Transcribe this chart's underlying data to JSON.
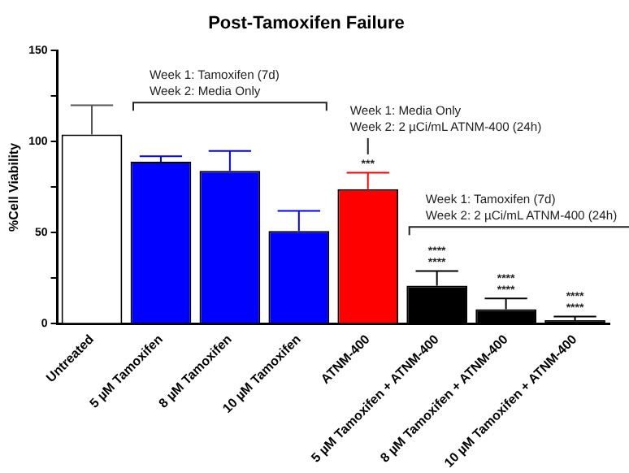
{
  "chart_data": {
    "type": "bar",
    "title": "Post-Tamoxifen Failure",
    "ylabel": "%Cell Viability",
    "categories": [
      "Untreated",
      "5 µM Tamoxifen",
      "8 µM Tamoxifen",
      "10 µM Tamoxifen",
      "ATNM-400",
      "5 µM Tamoxifen + ATNM-400",
      "8 µM Tamoxifen + ATNM-400",
      "10 µM Tamoxifen + ATNM-400"
    ],
    "values": [
      104,
      89,
      84,
      51,
      74,
      21,
      8,
      2
    ],
    "colors": [
      "#ffffff",
      "#0000ff",
      "#0000ff",
      "#0000ff",
      "#ff0000",
      "#000000",
      "#000000",
      "#000000"
    ],
    "errors": [
      [
        104,
        120
      ],
      [
        89,
        92
      ],
      [
        84,
        95
      ],
      [
        51,
        62
      ],
      [
        74,
        83
      ],
      [
        21,
        29
      ],
      [
        8,
        14
      ],
      [
        2,
        4
      ]
    ],
    "ylim": [
      0,
      150
    ],
    "yticks": [
      0,
      {
        "value": 25,
        "label": null
      },
      50,
      {
        "value": 75,
        "label": null
      },
      100,
      {
        "value": 125,
        "label": null
      },
      150
    ],
    "grid": false,
    "legend": false,
    "annotations": [
      "Week 1: Tamoxifen (7d)\nWeek 2: Media Only",
      "Week 1: Media Only\nWeek 2: 2 µCi/mL ATNM-400 (24h)",
      "Week 1: Tamoxifen (7d)\nWeek 2: 2 µCi/mL ATNM-400 (24h)",
      "***",
      "****",
      "****",
      "****",
      "****",
      "****",
      "****"
    ]
  }
}
